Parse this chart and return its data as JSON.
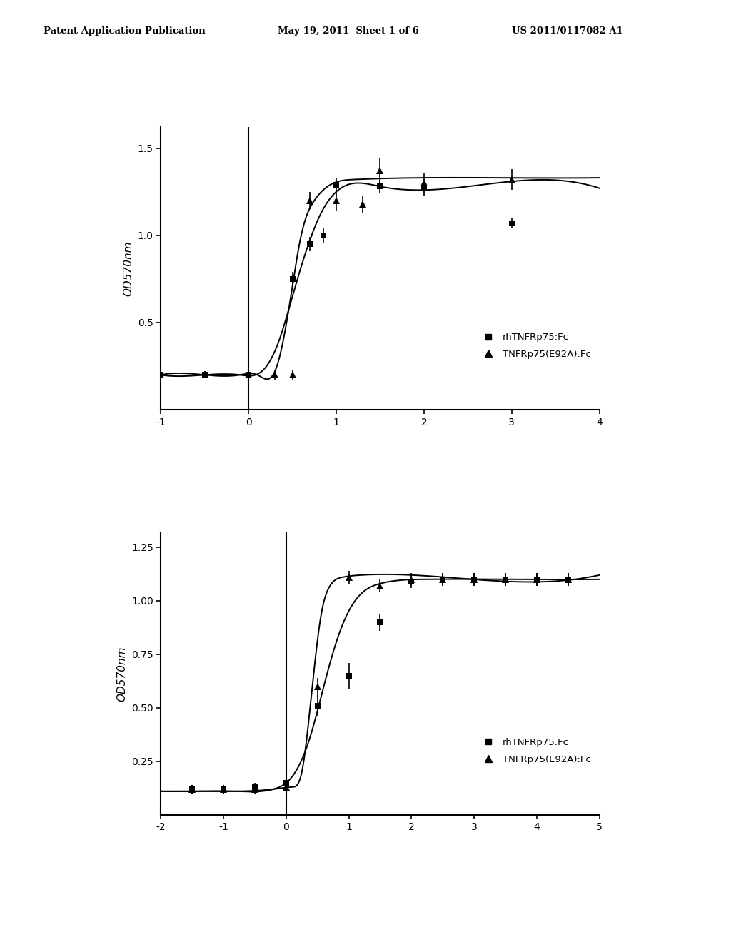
{
  "header_left": "Patent Application Publication",
  "header_mid": "May 19, 2011  Sheet 1 of 6",
  "header_right": "US 2011/0117082 A1",
  "background_color": "#ffffff",
  "chart1": {
    "ylabel": "OD570nm",
    "xlim": [
      -1,
      4
    ],
    "ylim": [
      0.0,
      1.62
    ],
    "yticks": [
      0.5,
      1.0,
      1.5
    ],
    "ytick_labels": [
      "0.5",
      "1.0",
      "1.5"
    ],
    "xticks": [
      -1,
      0,
      1,
      2,
      3,
      4
    ],
    "xtick_labels": [
      "-1",
      "0",
      "1",
      "2",
      "3",
      "4"
    ],
    "series1_label": "rhTNFRp75:Fc",
    "series2_label": "TNFRp75(E92A):Fc",
    "s1_x": [
      -1.0,
      -0.5,
      0.0,
      0.5,
      0.7,
      0.85,
      1.0,
      1.5,
      2.0,
      3.0
    ],
    "s1_y": [
      0.2,
      0.2,
      0.2,
      0.75,
      0.95,
      1.0,
      1.29,
      1.28,
      1.27,
      1.07
    ],
    "s1_yerr": [
      0.02,
      0.02,
      0.02,
      0.04,
      0.04,
      0.04,
      0.04,
      0.04,
      0.04,
      0.03
    ],
    "s2_x": [
      -1.0,
      -0.5,
      0.0,
      0.3,
      0.5,
      0.7,
      1.0,
      1.3,
      1.5,
      2.0,
      3.0
    ],
    "s2_y": [
      0.2,
      0.2,
      0.2,
      0.2,
      0.2,
      1.2,
      1.2,
      1.18,
      1.37,
      1.3,
      1.32
    ],
    "s2_yerr": [
      0.02,
      0.02,
      0.02,
      0.03,
      0.03,
      0.05,
      0.06,
      0.05,
      0.07,
      0.06,
      0.06
    ],
    "s1_curve_x": [
      -1.0,
      -0.5,
      -0.1,
      0.15,
      0.35,
      0.5,
      0.65,
      0.8,
      1.0,
      1.5,
      2.5,
      4.0
    ],
    "s1_curve_y": [
      0.2,
      0.2,
      0.2,
      0.22,
      0.4,
      0.65,
      0.9,
      1.1,
      1.25,
      1.28,
      1.28,
      1.27
    ],
    "s2_curve_x": [
      -1.0,
      -0.5,
      -0.1,
      0.1,
      0.3,
      0.45,
      0.6,
      0.75,
      0.9,
      1.2,
      2.0,
      4.0
    ],
    "s2_curve_y": [
      0.2,
      0.2,
      0.2,
      0.2,
      0.22,
      0.55,
      1.0,
      1.2,
      1.28,
      1.32,
      1.33,
      1.33
    ]
  },
  "chart2": {
    "ylabel": "OD570nm",
    "xlim": [
      -2,
      5
    ],
    "ylim": [
      0.0,
      1.32
    ],
    "yticks": [
      0.25,
      0.5,
      0.75,
      1.0,
      1.25
    ],
    "ytick_labels": [
      "0.25",
      "0.50",
      "0.75",
      "1.00",
      "1.25"
    ],
    "xticks": [
      -2,
      -1,
      0,
      1,
      2,
      3,
      4,
      5
    ],
    "xtick_labels": [
      "-2",
      "-1",
      "0",
      "1",
      "2",
      "3",
      "4",
      "5"
    ],
    "series1_label": "rhTNFRp75:Fc",
    "series2_label": "TNFRp75(E92A):Fc",
    "s1_x": [
      -1.5,
      -1.0,
      -0.5,
      0.0,
      0.5,
      1.0,
      1.5,
      2.0,
      2.5,
      3.0,
      3.5,
      4.0,
      4.5
    ],
    "s1_y": [
      0.12,
      0.12,
      0.13,
      0.15,
      0.51,
      0.65,
      0.9,
      1.09,
      1.1,
      1.1,
      1.1,
      1.1,
      1.1
    ],
    "s1_yerr": [
      0.02,
      0.02,
      0.02,
      0.02,
      0.05,
      0.06,
      0.04,
      0.03,
      0.03,
      0.03,
      0.03,
      0.03,
      0.03
    ],
    "s2_x": [
      -1.5,
      -1.0,
      -0.5,
      0.0,
      0.5,
      1.0,
      1.5,
      2.0,
      2.5,
      3.0,
      3.5,
      4.0,
      4.5
    ],
    "s2_y": [
      0.12,
      0.12,
      0.12,
      0.13,
      0.6,
      1.11,
      1.07,
      1.1,
      1.1,
      1.1,
      1.1,
      1.1,
      1.1
    ],
    "s2_yerr": [
      0.02,
      0.02,
      0.02,
      0.02,
      0.04,
      0.03,
      0.03,
      0.03,
      0.03,
      0.03,
      0.03,
      0.03,
      0.03
    ],
    "s1_curve_x": [
      -2.0,
      -1.5,
      -0.8,
      -0.2,
      0.1,
      0.4,
      0.6,
      0.85,
      1.1,
      1.5,
      2.2,
      3.5,
      5.0
    ],
    "s1_curve_y": [
      0.11,
      0.11,
      0.11,
      0.12,
      0.18,
      0.38,
      0.6,
      0.85,
      1.0,
      1.08,
      1.1,
      1.1,
      1.1
    ],
    "s2_curve_x": [
      -2.0,
      -1.5,
      -0.8,
      -0.2,
      0.1,
      0.25,
      0.4,
      0.55,
      0.7,
      0.9,
      1.2,
      2.0,
      5.0
    ],
    "s2_curve_y": [
      0.11,
      0.11,
      0.11,
      0.12,
      0.13,
      0.2,
      0.55,
      0.92,
      1.07,
      1.11,
      1.12,
      1.12,
      1.12
    ]
  }
}
